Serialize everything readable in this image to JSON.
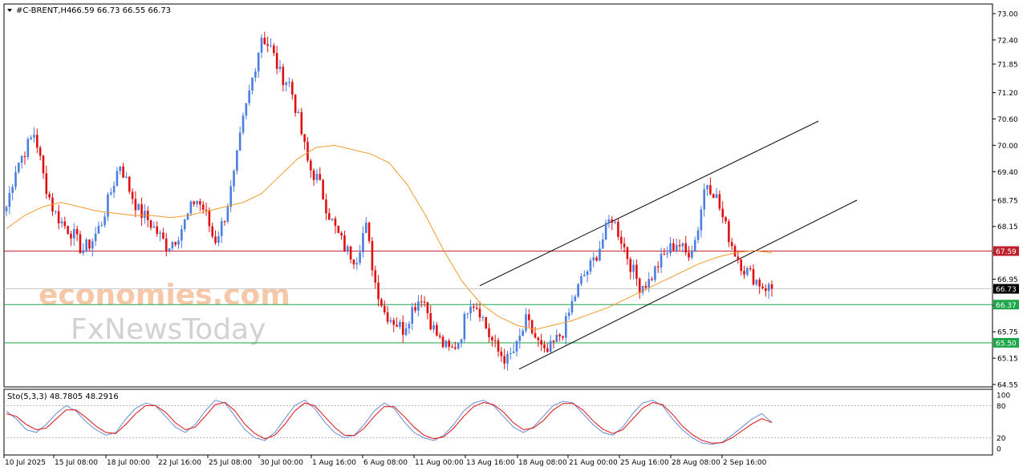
{
  "header": {
    "symbol": "#C-BRENT,H4",
    "ohlc": "66.59 66.73 66.55 66.73"
  },
  "indicator": {
    "label": "Sto(5,3,3) 48.7805 48.2916",
    "levels": [
      "100",
      "80",
      "20",
      "0"
    ]
  },
  "watermark": {
    "line1": "economies.com",
    "line2": "FxNewsToday"
  },
  "colors": {
    "bull": "#4a7ee0",
    "bear": "#e01010",
    "ma": "#f39a2b",
    "resistance_line": "#c0202c",
    "support_line": "#1ea64a",
    "stoch_main": "#6a8fd8",
    "stoch_signal": "#e01010"
  },
  "chart_data": {
    "type": "candlestick",
    "price_axis_ticks": [
      "73.00",
      "72.40",
      "71.85",
      "71.20",
      "70.60",
      "70.00",
      "69.40",
      "68.75",
      "68.15",
      "67.55",
      "66.95",
      "66.35",
      "65.75",
      "65.15",
      "64.55"
    ],
    "time_axis_ticks": [
      "10 Jul 2025",
      "15 Jul 08:00",
      "18 Jul 00:00",
      "22 Jul 16:00",
      "25 Jul 08:00",
      "30 Jul 00:00",
      "1 Aug 16:00",
      "6 Aug 08:00",
      "11 Aug 00:00",
      "13 Aug 16:00",
      "18 Aug 08:00",
      "21 Aug 00:00",
      "25 Aug 16:00",
      "28 Aug 08:00",
      "2 Sep 16:00"
    ],
    "ylim": [
      64.55,
      73.0
    ],
    "horizontal_levels": [
      {
        "value": 67.59,
        "label": "67.59",
        "color": "#c0202c"
      },
      {
        "value": 66.73,
        "label": "66.73",
        "color": "#000000",
        "current": true
      },
      {
        "value": 66.37,
        "label": "66.37",
        "color": "#1ea64a"
      },
      {
        "value": 65.5,
        "label": "65.50",
        "color": "#1ea64a"
      }
    ],
    "channel": {
      "lower_start": [
        "18 Aug 08:00",
        64.9
      ],
      "lower_end": [
        "8 Sep",
        68.75
      ],
      "upper_start": [
        "13 Aug 16:00",
        66.8
      ],
      "upper_end": [
        "5 Sep",
        70.55
      ]
    },
    "close_path": [
      68.6,
      69.5,
      69.9,
      70.3,
      69.2,
      68.5,
      68.2,
      68.0,
      67.6,
      67.8,
      68.2,
      68.9,
      69.6,
      69.0,
      68.5,
      68.3,
      68.0,
      67.7,
      67.9,
      68.3,
      68.8,
      68.5,
      67.8,
      68.3,
      69.2,
      70.5,
      71.5,
      72.5,
      72.2,
      71.6,
      71.4,
      70.5,
      69.5,
      69.2,
      68.5,
      68.0,
      67.6,
      67.4,
      68.2,
      66.9,
      66.2,
      66.0,
      65.8,
      66.3,
      66.6,
      65.9,
      65.5,
      65.3,
      65.6,
      66.5,
      66.3,
      65.7,
      65.3,
      65.1,
      65.4,
      66.0,
      65.6,
      65.2,
      65.5,
      65.8,
      66.5,
      67.0,
      67.3,
      67.8,
      68.4,
      67.9,
      67.3,
      66.8,
      66.9,
      67.3,
      67.6,
      67.8,
      67.5,
      67.9,
      69.2,
      68.9,
      68.2,
      67.6,
      67.2,
      67.0,
      66.8,
      66.73
    ],
    "moving_average_path": [
      68.1,
      68.4,
      68.6,
      68.7,
      68.6,
      68.5,
      68.45,
      68.4,
      68.4,
      68.35,
      68.4,
      68.5,
      68.6,
      68.7,
      68.9,
      69.3,
      69.7,
      69.95,
      70.0,
      69.9,
      69.8,
      69.6,
      69.1,
      68.4,
      67.6,
      66.9,
      66.4,
      66.1,
      65.9,
      65.8,
      65.9,
      66.0,
      66.15,
      66.3,
      66.5,
      66.7,
      66.9,
      67.1,
      67.3,
      67.45,
      67.55,
      67.6,
      67.55
    ],
    "stochastic_main": [
      70,
      55,
      35,
      30,
      45,
      65,
      80,
      70,
      50,
      35,
      25,
      30,
      55,
      75,
      85,
      80,
      60,
      40,
      30,
      45,
      70,
      90,
      85,
      60,
      35,
      20,
      15,
      30,
      55,
      80,
      90,
      75,
      50,
      30,
      20,
      25,
      45,
      70,
      85,
      75,
      50,
      30,
      20,
      15,
      25,
      45,
      70,
      85,
      90,
      80,
      60,
      40,
      30,
      40,
      60,
      80,
      88,
      85,
      65,
      45,
      30,
      25,
      40,
      65,
      85,
      90,
      80,
      55,
      35,
      20,
      10,
      8,
      12,
      25,
      40,
      55,
      65,
      48.78
    ],
    "stochastic_signal": [
      65,
      60,
      45,
      35,
      38,
      55,
      72,
      72,
      58,
      42,
      30,
      28,
      45,
      65,
      80,
      80,
      68,
      48,
      35,
      40,
      60,
      82,
      86,
      70,
      45,
      28,
      18,
      25,
      45,
      70,
      85,
      80,
      60,
      40,
      25,
      24,
      38,
      60,
      78,
      78,
      60,
      40,
      25,
      18,
      22,
      38,
      60,
      78,
      86,
      82,
      68,
      48,
      35,
      38,
      52,
      72,
      84,
      84,
      72,
      52,
      36,
      28,
      35,
      55,
      75,
      86,
      82,
      64,
      42,
      26,
      15,
      10,
      11,
      20,
      33,
      46,
      56,
      48.29
    ]
  }
}
